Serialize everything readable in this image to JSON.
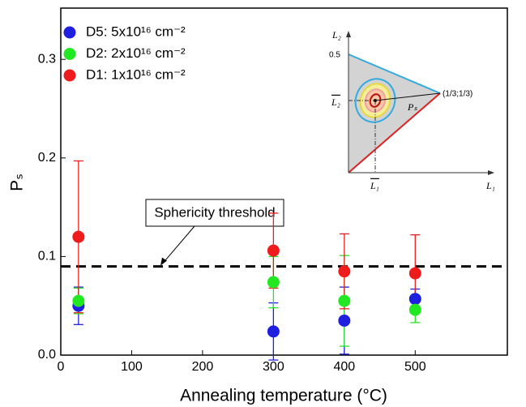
{
  "chart_data": {
    "type": "scatter",
    "x_label": "Annealing temperature (°C)",
    "y_label": "Pₛ",
    "x": [
      25,
      300,
      400,
      500
    ],
    "xlim": [
      0,
      630
    ],
    "xticks": [
      0,
      100,
      200,
      300,
      400,
      500
    ],
    "ylim": [
      0,
      0.352
    ],
    "yticks": [
      {
        "value": 0,
        "label": "0.0"
      },
      0.1,
      0.2,
      0.3
    ],
    "series": [
      {
        "name": "D5: 5x10¹⁶ cm⁻²",
        "color": "#1f1fe0",
        "values": [
          0.05,
          0.024,
          0.035,
          0.057
        ],
        "errors": [
          0.019,
          0.029,
          0.034,
          0.01
        ]
      },
      {
        "name": "D2: 2x10¹⁶ cm⁻²",
        "color": "#22e822",
        "values": [
          0.055,
          0.074,
          0.055,
          0.046
        ],
        "errors": [
          0.013,
          0.026,
          0.046,
          0.013
        ]
      },
      {
        "name": "D1: 1x10¹⁶ cm⁻²",
        "color": "#ee1c1c",
        "values": [
          0.12,
          0.106,
          0.085,
          0.083
        ],
        "errors": [
          0.077,
          0.038,
          0.038,
          0.039
        ]
      }
    ],
    "threshold": {
      "value": 0.09,
      "label": "Sphericity threshold"
    },
    "inset": {
      "l2_axis": "L₂",
      "l1_axis": "L₁",
      "half": "0.5",
      "vertex": "(1/3;1/3)",
      "l2_bar": "L₂",
      "l1_bar": "L₁",
      "ps": "Pₛ"
    }
  }
}
